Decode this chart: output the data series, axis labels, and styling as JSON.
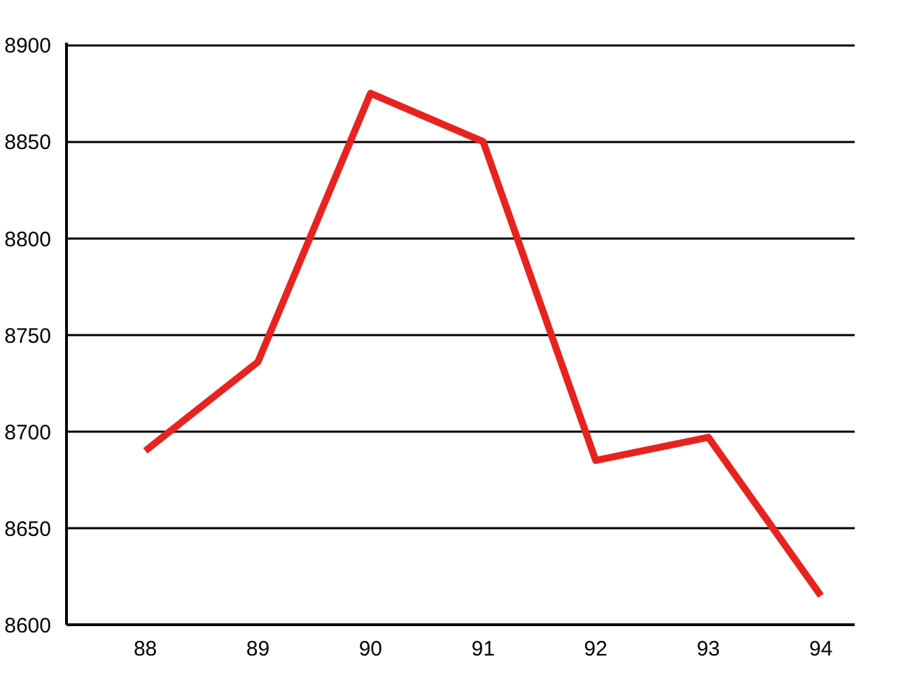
{
  "chart_data": {
    "type": "line",
    "categories": [
      "88",
      "89",
      "90",
      "91",
      "92",
      "93",
      "94"
    ],
    "series": [
      {
        "color": "#e8231f",
        "values": [
          8690,
          8736,
          8875,
          8850,
          8685,
          8697,
          8615
        ]
      }
    ],
    "ylim": [
      8600,
      8900
    ],
    "yticks": [
      8600,
      8650,
      8700,
      8750,
      8800,
      8850,
      8900
    ],
    "grid": "y",
    "marker": "none",
    "line_style": "solid"
  }
}
